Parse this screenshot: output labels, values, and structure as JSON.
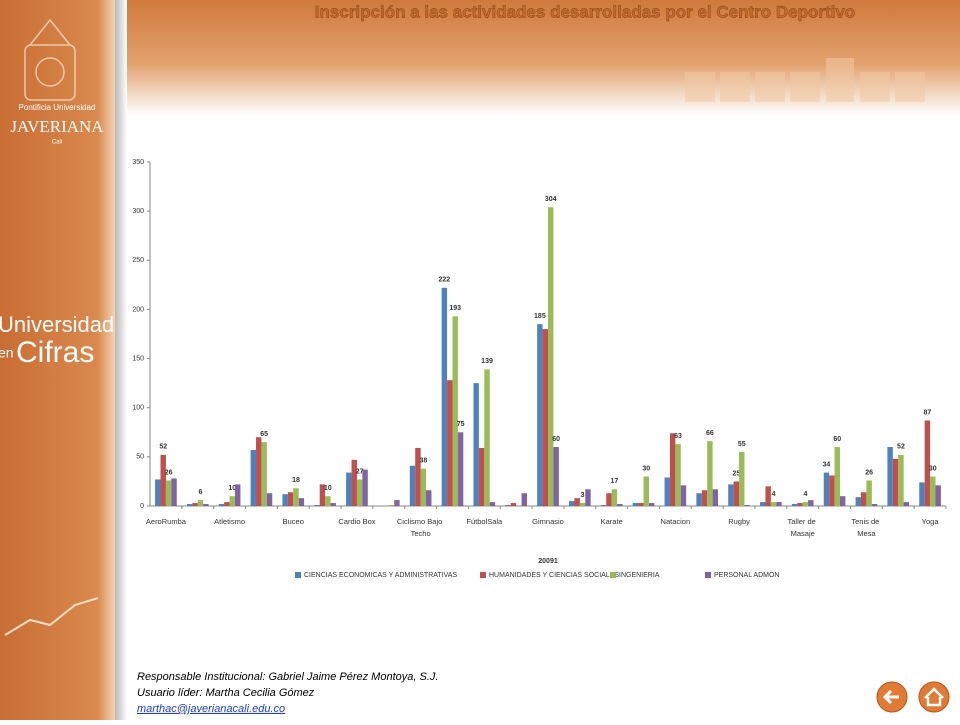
{
  "header": {
    "title": "Inscripción a las actividades desarrolladas por el Centro Deportivo"
  },
  "logo": {
    "line1": "Pontificia Universidad",
    "line2": "JAVERIANA",
    "line3": "Cali"
  },
  "side": {
    "line1": "Universidad",
    "line2": "en",
    "line3": "Cifras"
  },
  "footer": {
    "responsable": "Responsable Institucional: Gabriel Jaime Pérez Montoya, S.J.",
    "usuario": "Usuario líder: Martha Cecilia Gómez",
    "email": "marthac@javerianacali.edu.co"
  },
  "chart_data": {
    "type": "bar",
    "xlabel": "20091",
    "categories": [
      "AeroRumba",
      null,
      "Atletismo",
      null,
      "Buceo",
      null,
      "Cardio Box",
      null,
      "Ciclismo Bajo Techo",
      null,
      "FútbolSala",
      null,
      "Gimnasio",
      null,
      "Karate",
      null,
      "Natacion",
      null,
      "Rugby",
      null,
      "Taller de Masaje",
      null,
      "Tenis de Mesa",
      null,
      "Yoga"
    ],
    "series": [
      {
        "name": "CIENCIAS ECONOMICAS Y ADMINISTRATIVAS",
        "color": "#4f81bd",
        "values": [
          27,
          2,
          2,
          57,
          12,
          1,
          34,
          0,
          41,
          222,
          125,
          1,
          185,
          5,
          1,
          3,
          29,
          13,
          22,
          4,
          2,
          34,
          9,
          60,
          24
        ],
        "value_labels": [
          null,
          null,
          null,
          null,
          null,
          null,
          null,
          null,
          null,
          222,
          null,
          null,
          185,
          null,
          null,
          null,
          null,
          null,
          null,
          null,
          null,
          34,
          null,
          null,
          null
        ]
      },
      {
        "name": "HUMANIDADES Y CIENCIAS SOCIALES",
        "color": "#c0504d",
        "values": [
          52,
          3,
          4,
          70,
          14,
          22,
          47,
          0,
          59,
          128,
          59,
          3,
          180,
          8,
          13,
          3,
          74,
          16,
          25,
          20,
          3,
          31,
          14,
          48,
          87
        ],
        "value_labels": [
          52,
          null,
          null,
          null,
          null,
          null,
          null,
          null,
          null,
          null,
          null,
          null,
          null,
          null,
          null,
          null,
          null,
          null,
          25,
          null,
          null,
          null,
          null,
          null,
          87
        ]
      },
      {
        "name": "INGENIERIA",
        "color": "#9bbb59",
        "values": [
          26,
          6,
          10,
          65,
          18,
          10,
          27,
          1,
          38,
          193,
          139,
          0,
          304,
          3,
          17,
          30,
          63,
          66,
          55,
          4,
          4,
          60,
          26,
          52,
          30
        ],
        "value_labels": [
          26,
          6,
          10,
          65,
          18,
          10,
          27,
          null,
          38,
          193,
          139,
          null,
          304,
          3,
          17,
          30,
          63,
          66,
          55,
          4,
          4,
          60,
          26,
          52,
          30
        ]
      },
      {
        "name": "PERSONAL ADMON",
        "color": "#8064a2",
        "values": [
          28,
          2,
          22,
          13,
          8,
          3,
          37,
          6,
          16,
          75,
          4,
          13,
          60,
          17,
          2,
          3,
          21,
          17,
          1,
          4,
          6,
          10,
          2,
          4,
          21
        ],
        "value_labels": [
          null,
          null,
          null,
          null,
          null,
          null,
          null,
          null,
          null,
          75,
          null,
          null,
          60,
          null,
          null,
          null,
          null,
          null,
          null,
          null,
          null,
          null,
          null,
          null,
          null
        ]
      }
    ],
    "ylim": [
      0,
      350
    ],
    "yticks": [
      0,
      50,
      100,
      150,
      200,
      250,
      300,
      350
    ],
    "grid": false,
    "legend": "bottom"
  }
}
